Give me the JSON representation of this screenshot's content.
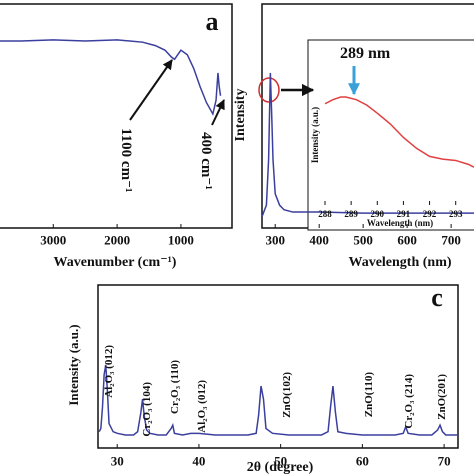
{
  "chart_data": [
    {
      "type": "line",
      "panel_label": "a",
      "xlabel": "Wavenumber (cm⁻¹)",
      "color": "#3b3f9e",
      "x": [
        3850,
        3500,
        3000,
        2500,
        2000,
        1800,
        1600,
        1400,
        1250,
        1150,
        1100,
        1050,
        1000,
        900,
        800,
        700,
        600,
        500,
        450,
        420,
        400,
        380
      ],
      "values": [
        82,
        82,
        82.5,
        82,
        82.5,
        82,
        81.5,
        80,
        78,
        75,
        74,
        76,
        78,
        76,
        70,
        62,
        55,
        50,
        56,
        68,
        62,
        58
      ],
      "xlim": [
        3850,
        200
      ],
      "ylim": [
        0,
        100
      ],
      "xticks": [
        3000,
        2000,
        1000
      ],
      "annotations": [
        "1100 cm⁻¹",
        "400 cm⁻¹"
      ]
    },
    {
      "type": "line",
      "xlabel": "Wavelength (nm)",
      "ylabel": "Intensity",
      "color": "#3b3f9e",
      "x": [
        270,
        280,
        285,
        289,
        292,
        295,
        300,
        310,
        320,
        340,
        400,
        500,
        600,
        700,
        752
      ],
      "values": [
        5,
        10,
        30,
        68,
        50,
        30,
        15,
        10,
        8,
        7,
        7,
        6.5,
        6.5,
        6.5,
        6.5
      ],
      "xlim": [
        270,
        752
      ],
      "ylim": [
        0,
        100
      ],
      "xticks": [
        300,
        400,
        500,
        600,
        700
      ]
    },
    {
      "type": "line",
      "xlabel": "Wavelength (nm)",
      "ylabel": "Intensity (a.u.)",
      "color": "#e04040",
      "x": [
        288,
        288.3,
        288.6,
        288.8,
        289.2,
        289.6,
        290,
        290.5,
        291,
        291.5,
        292,
        292.5,
        293,
        293.5,
        293.7
      ],
      "values": [
        75,
        78,
        80,
        80,
        78,
        74,
        68,
        60,
        50,
        42,
        36,
        34,
        33,
        30,
        28
      ],
      "xlim": [
        288,
        293.7
      ],
      "ylim": [
        0,
        100
      ],
      "xticks": [
        288,
        289,
        290,
        291,
        292,
        293
      ],
      "annotations": [
        "289 nm"
      ]
    },
    {
      "type": "line",
      "panel_label": "c",
      "xlabel": "2θ (degree)",
      "ylabel": "Intensity (a.u.)",
      "color": "#3b3f9e",
      "x": [
        27.8,
        28,
        28.2,
        28.4,
        28.6,
        28.8,
        29,
        29.5,
        30,
        31,
        32,
        32.5,
        32.9,
        33.1,
        33.3,
        33.6,
        34,
        35,
        36,
        36.6,
        36.8,
        37,
        38,
        39,
        40,
        42,
        44,
        46,
        47,
        47.3,
        47.6,
        47.9,
        48.2,
        49,
        51,
        53,
        55,
        55.8,
        56.1,
        56.4,
        56.7,
        57,
        58,
        60,
        62,
        64,
        65,
        65.3,
        65.6,
        67,
        68.5,
        69.2,
        69.5,
        69.8,
        70.2,
        71.7
      ],
      "values": [
        10,
        12,
        25,
        45,
        51,
        35,
        15,
        10,
        9,
        8,
        8,
        10,
        22,
        30,
        20,
        11,
        9,
        8,
        8,
        12,
        14,
        9,
        8,
        9,
        9,
        8,
        8,
        8,
        9,
        20,
        38,
        30,
        12,
        9,
        8,
        8,
        8,
        10,
        25,
        38,
        22,
        10,
        9,
        8,
        8,
        8,
        9,
        13,
        9,
        8,
        8,
        11,
        14,
        10,
        8,
        8
      ],
      "xlim": [
        27.65,
        71.7
      ],
      "ylim": [
        0,
        100
      ],
      "xticks": [
        30,
        40,
        50,
        60,
        70
      ],
      "annotations": [
        "Al₂O₃ (012)",
        "Cr₂O₃ (104)",
        "Cr₂O₃ (110)",
        "Al₂O₃ (012)",
        "ZnO(102)",
        "ZnO(110)",
        "Cr₂O₃ (214)",
        "ZnO(201)"
      ]
    }
  ]
}
